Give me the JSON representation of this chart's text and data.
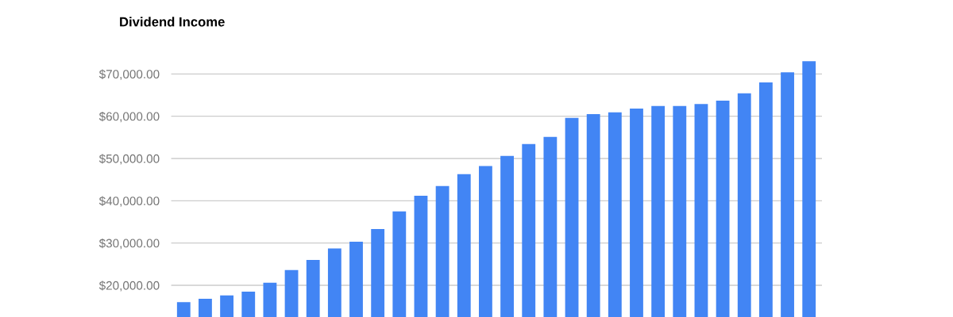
{
  "chart_data": {
    "type": "bar",
    "title": "Dividend Income",
    "categories": [
      null,
      null,
      null,
      null,
      null,
      null,
      null,
      null,
      null,
      null,
      null,
      null,
      null,
      null,
      null,
      null,
      null,
      null,
      null,
      null,
      null,
      null,
      null,
      null,
      null,
      null,
      null,
      null,
      null,
      null
    ],
    "values": [
      16000,
      16800,
      17600,
      18500,
      20600,
      23600,
      26000,
      28700,
      30300,
      33300,
      37500,
      41200,
      43500,
      46300,
      48200,
      50600,
      53400,
      55100,
      59600,
      60500,
      60900,
      61800,
      62400,
      62400,
      62900,
      63700,
      65400,
      68000,
      70400,
      73000
    ],
    "color": "#4285f4",
    "ylim": [
      12500,
      77000
    ],
    "yticks": [
      {
        "value": 20000,
        "label": "$20,000.00"
      },
      {
        "value": 30000,
        "label": "$30,000.00"
      },
      {
        "value": 40000,
        "label": "$40,000.00"
      },
      {
        "value": 50000,
        "label": "$50,000.00"
      },
      {
        "value": 60000,
        "label": "$60,000.00"
      },
      {
        "value": 70000,
        "label": "$70,000.00"
      }
    ],
    "grid": "y"
  }
}
